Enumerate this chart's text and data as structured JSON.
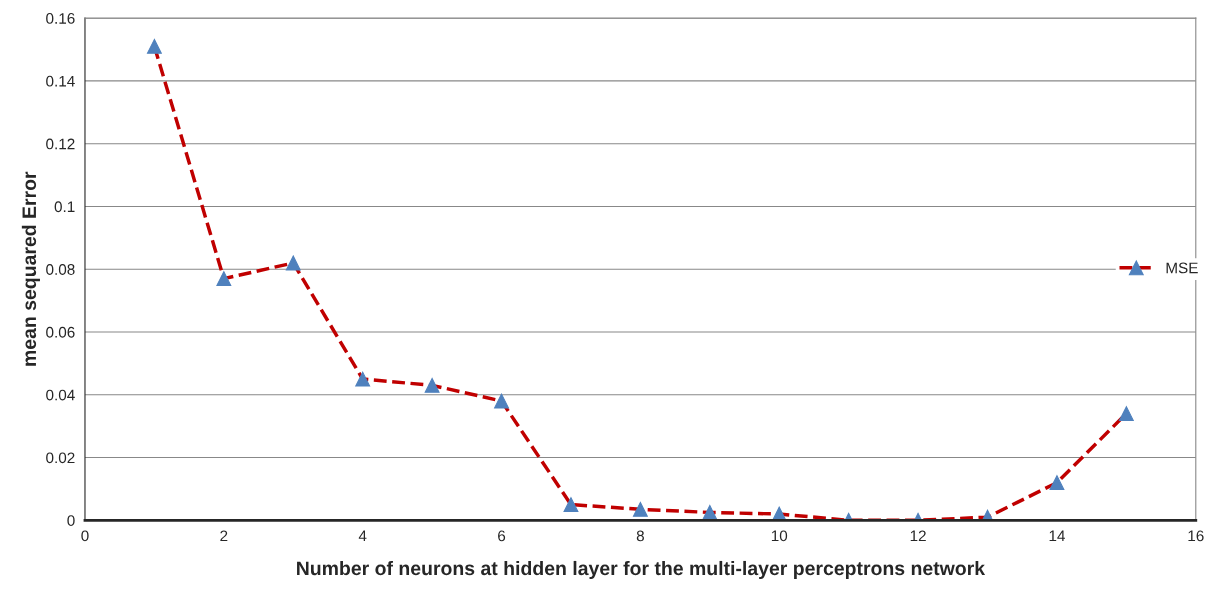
{
  "chart_data": {
    "type": "line",
    "xlabel": "Number of neurons at hidden layer for the multi-layer perceptrons network",
    "ylabel": "mean sequared Error",
    "x": [
      1,
      2,
      3,
      4,
      5,
      6,
      7,
      8,
      9,
      10,
      11,
      12,
      13,
      14,
      15
    ],
    "series": [
      {
        "name": "MSE",
        "color": "#c00000",
        "values": [
          0.151,
          0.077,
          0.082,
          0.045,
          0.043,
          0.038,
          0.005,
          0.0035,
          0.0025,
          0.002,
          0.0,
          0.0,
          0.001,
          0.012,
          0.034
        ]
      }
    ],
    "xlim": [
      0,
      16
    ],
    "xticks": [
      0,
      2,
      4,
      6,
      8,
      10,
      12,
      14,
      16
    ],
    "ylim": [
      0,
      0.16
    ],
    "yticks": [
      0,
      0.02,
      0.04,
      0.06,
      0.08,
      {
        "value": 0.1,
        "label": "0.1"
      },
      0.12,
      0.14,
      0.16
    ],
    "grid": "y",
    "legend": "right",
    "marker": "triangle",
    "line_style": "dashed"
  }
}
